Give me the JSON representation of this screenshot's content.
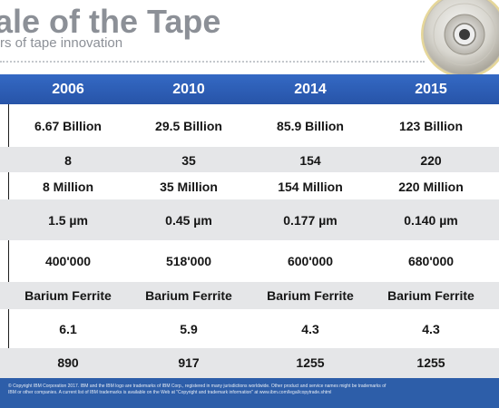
{
  "header": {
    "title": "ale of the Tape",
    "subtitle": "rs of tape innovation"
  },
  "table": {
    "years": [
      "2006",
      "2010",
      "2014",
      "2015"
    ],
    "rows": [
      [
        "6.67 Billion",
        "29.5 Billion",
        "85.9 Billion",
        "123 Billion"
      ],
      [
        "8",
        "35",
        "154",
        "220"
      ],
      [
        "8 Million",
        "35 Million",
        "154 Million",
        "220 Million"
      ],
      [
        "1.5 µm",
        "0.45 µm",
        "0.177 µm",
        "0.140 µm"
      ],
      [
        "400'000",
        "518'000",
        "600'000",
        "680'000"
      ],
      [
        "Barium Ferrite",
        "Barium Ferrite",
        "Barium Ferrite",
        "Barium Ferrite"
      ],
      [
        "6.1",
        "5.9",
        "4.3",
        "4.3"
      ],
      [
        "890",
        "917",
        "1255",
        "1255"
      ]
    ]
  },
  "footer": {
    "text": "© Copyright IBM Corporation 2017. IBM and the IBM logo are trademarks of IBM Corp., registered in many jurisdictions worldwide. Other product and service names might be trademarks of IBM or other companies. A current list of IBM trademarks is available on the Web at \"Copyright and trademark information\" at www.ibm.com/legal/copytrade.shtml"
  },
  "colors": {
    "header_bar": "#2d5ea9",
    "title_gray": "#8c9097",
    "row_shade": "#e5e6e8"
  },
  "icons": [
    "tape-reel-icon"
  ]
}
